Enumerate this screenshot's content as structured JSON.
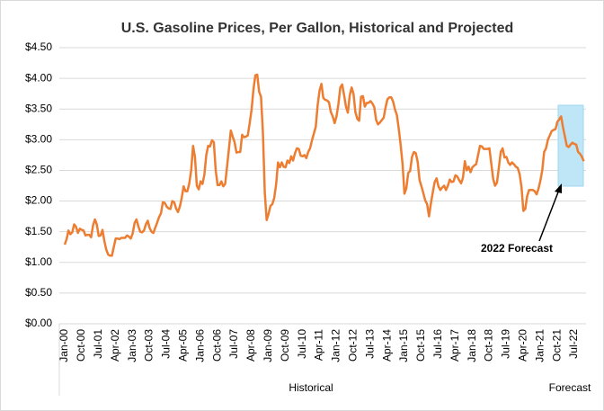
{
  "chart_data": {
    "type": "line",
    "title": "U.S. Gasoline Prices, Per Gallon, Historical and Projected",
    "categories": [
      "Jan-00",
      null,
      null,
      null,
      null,
      null,
      null,
      null,
      null,
      "Oct-00",
      null,
      null,
      null,
      null,
      null,
      null,
      null,
      null,
      "Jul-01",
      null,
      null,
      null,
      null,
      null,
      null,
      null,
      null,
      "Apr-02",
      null,
      null,
      null,
      null,
      null,
      null,
      null,
      null,
      "Jan-03",
      null,
      null,
      null,
      null,
      null,
      null,
      null,
      null,
      "Oct-03",
      null,
      null,
      null,
      null,
      null,
      null,
      null,
      null,
      "Jul-04",
      null,
      null,
      null,
      null,
      null,
      null,
      null,
      null,
      "Apr-05",
      null,
      null,
      null,
      null,
      null,
      null,
      null,
      null,
      "Jan-06",
      null,
      null,
      null,
      null,
      null,
      null,
      null,
      null,
      "Oct-06",
      null,
      null,
      null,
      null,
      null,
      null,
      null,
      null,
      "Jul-07",
      null,
      null,
      null,
      null,
      null,
      null,
      null,
      null,
      "Apr-08",
      null,
      null,
      null,
      null,
      null,
      null,
      null,
      null,
      "Jan-09",
      null,
      null,
      null,
      null,
      null,
      null,
      null,
      null,
      "Oct-09",
      null,
      null,
      null,
      null,
      null,
      null,
      null,
      null,
      "Jul-10",
      null,
      null,
      null,
      null,
      null,
      null,
      null,
      null,
      "Apr-11",
      null,
      null,
      null,
      null,
      null,
      null,
      null,
      null,
      "Jan-12",
      null,
      null,
      null,
      null,
      null,
      null,
      null,
      null,
      "Oct-12",
      null,
      null,
      null,
      null,
      null,
      null,
      null,
      null,
      "Jul-13",
      null,
      null,
      null,
      null,
      null,
      null,
      null,
      null,
      "Apr-14",
      null,
      null,
      null,
      null,
      null,
      null,
      null,
      null,
      "Jan-15",
      null,
      null,
      null,
      null,
      null,
      null,
      null,
      null,
      "Oct-15",
      null,
      null,
      null,
      null,
      null,
      null,
      null,
      null,
      "Jul-16",
      null,
      null,
      null,
      null,
      null,
      null,
      null,
      null,
      "Apr-17",
      null,
      null,
      null,
      null,
      null,
      null,
      null,
      null,
      "Jan-18",
      null,
      null,
      null,
      null,
      null,
      null,
      null,
      null,
      "Oct-18",
      null,
      null,
      null,
      null,
      null,
      null,
      null,
      null,
      "Jul-19",
      null,
      null,
      null,
      null,
      null,
      null,
      null,
      null,
      "Apr-20",
      null,
      null,
      null,
      null,
      null,
      null,
      null,
      null,
      "Jan-21",
      null,
      null,
      null,
      null,
      null,
      null,
      null,
      null,
      "Oct-21",
      null,
      null,
      null,
      null,
      null,
      null,
      null,
      null,
      "Jul-22",
      null,
      null,
      null,
      null,
      null
    ],
    "series": [
      {
        "color": "#ed7d31",
        "values": [
          1.29,
          1.38,
          1.52,
          1.46,
          1.49,
          1.62,
          1.58,
          1.48,
          1.55,
          1.53,
          1.52,
          1.44,
          1.45,
          1.45,
          1.41,
          1.6,
          1.7,
          1.62,
          1.43,
          1.44,
          1.53,
          1.35,
          1.21,
          1.13,
          1.11,
          1.11,
          1.25,
          1.39,
          1.39,
          1.38,
          1.4,
          1.4,
          1.4,
          1.44,
          1.42,
          1.39,
          1.47,
          1.64,
          1.7,
          1.59,
          1.5,
          1.49,
          1.52,
          1.62,
          1.68,
          1.56,
          1.5,
          1.48,
          1.57,
          1.65,
          1.74,
          1.8,
          1.98,
          1.97,
          1.91,
          1.88,
          1.87,
          2.0,
          1.98,
          1.88,
          1.82,
          1.91,
          2.05,
          2.24,
          2.16,
          2.16,
          2.29,
          2.5,
          2.9,
          2.72,
          2.25,
          2.19,
          2.32,
          2.28,
          2.43,
          2.75,
          2.9,
          2.89,
          2.99,
          2.96,
          2.5,
          2.26,
          2.26,
          2.32,
          2.24,
          2.28,
          2.56,
          2.85,
          3.15,
          3.05,
          2.96,
          2.79,
          2.8,
          2.8,
          3.08,
          3.04,
          3.05,
          3.07,
          3.27,
          3.49,
          3.82,
          4.05,
          4.06,
          3.78,
          3.7,
          3.12,
          2.14,
          1.69,
          1.79,
          1.92,
          1.95,
          2.05,
          2.27,
          2.63,
          2.55,
          2.63,
          2.56,
          2.55,
          2.66,
          2.62,
          2.73,
          2.66,
          2.78,
          2.86,
          2.85,
          2.74,
          2.73,
          2.75,
          2.7,
          2.8,
          2.86,
          2.99,
          3.1,
          3.21,
          3.56,
          3.8,
          3.91,
          3.68,
          3.65,
          3.64,
          3.61,
          3.45,
          3.38,
          3.27,
          3.38,
          3.58,
          3.85,
          3.9,
          3.73,
          3.54,
          3.44,
          3.72,
          3.85,
          3.75,
          3.45,
          3.34,
          3.31,
          3.7,
          3.71,
          3.54,
          3.6,
          3.6,
          3.63,
          3.59,
          3.53,
          3.32,
          3.25,
          3.28,
          3.32,
          3.36,
          3.53,
          3.66,
          3.69,
          3.69,
          3.62,
          3.49,
          3.4,
          3.17,
          2.91,
          2.6,
          2.12,
          2.21,
          2.46,
          2.49,
          2.72,
          2.8,
          2.78,
          2.64,
          2.34,
          2.24,
          2.13,
          2.01,
          1.95,
          1.75,
          1.96,
          2.14,
          2.31,
          2.37,
          2.24,
          2.18,
          2.22,
          2.25,
          2.18,
          2.25,
          2.35,
          2.31,
          2.32,
          2.42,
          2.4,
          2.34,
          2.29,
          2.38,
          2.65,
          2.5,
          2.56,
          2.47,
          2.55,
          2.58,
          2.6,
          2.75,
          2.9,
          2.89,
          2.85,
          2.85,
          2.85,
          2.86,
          2.61,
          2.36,
          2.25,
          2.3,
          2.54,
          2.8,
          2.86,
          2.71,
          2.72,
          2.63,
          2.59,
          2.63,
          2.6,
          2.56,
          2.54,
          2.44,
          2.23,
          1.84,
          1.87,
          2.08,
          2.18,
          2.18,
          2.18,
          2.16,
          2.11,
          2.2,
          2.33,
          2.5,
          2.8,
          2.86,
          3.0,
          3.07,
          3.14,
          3.16,
          3.17,
          3.29,
          3.33,
          3.38,
          3.2,
          3.05,
          2.9,
          2.88,
          2.92,
          2.95,
          2.93,
          2.92,
          2.8,
          2.77,
          2.72,
          2.65
        ]
      }
    ],
    "ylim": [
      0,
      4.5
    ],
    "yticks": [
      {
        "value": 0,
        "label": "$0.00"
      },
      {
        "value": 0.5,
        "label": "$0.50"
      },
      {
        "value": 1,
        "label": "$1.00"
      },
      {
        "value": 1.5,
        "label": "$1.50"
      },
      {
        "value": 2,
        "label": "$2.00"
      },
      {
        "value": 2.5,
        "label": "$2.50"
      },
      {
        "value": 3,
        "label": "$3.00"
      },
      {
        "value": 3.5,
        "label": "$3.50"
      },
      {
        "value": 4,
        "label": "$4.00"
      },
      {
        "value": 4.5,
        "label": "$4.50"
      }
    ],
    "grid": true,
    "x_groups": [
      "Historical",
      "Forecast"
    ],
    "annotation": "2022 Forecast"
  }
}
